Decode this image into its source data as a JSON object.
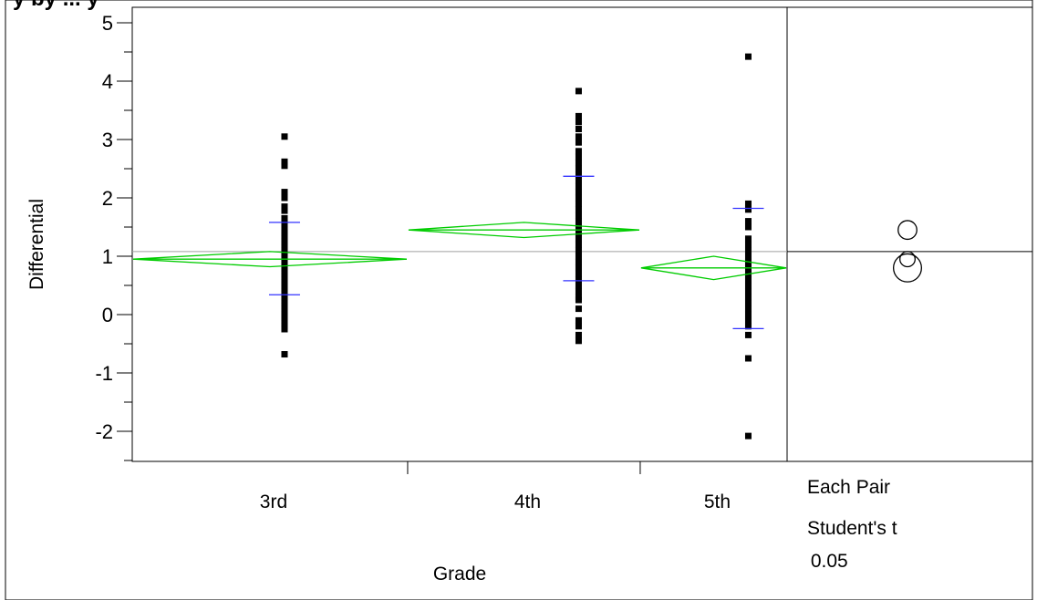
{
  "chart_data": {
    "type": "scatter",
    "title_fragment": "y by ... y",
    "ylabel": "Differential",
    "xlabel": "Grade",
    "ylim": [
      -2.5,
      5.1
    ],
    "yticks": [
      -2,
      -1,
      0,
      1,
      2,
      3,
      4,
      5
    ],
    "grand_mean": 1.08,
    "colors": {
      "points": "#000000",
      "diamond": "#00cc00",
      "quantile_bar": "#3333ff",
      "mean_line": "#a0a0a0"
    },
    "groups": [
      {
        "name": "3rd",
        "mean": 0.95,
        "ci_low": 0.82,
        "ci_high": 1.08,
        "q_high": 1.58,
        "q_low": 0.34,
        "points": [
          3.05,
          2.62,
          2.55,
          2.1,
          2.0,
          1.85,
          1.78,
          1.65,
          1.55,
          1.45,
          1.4,
          1.35,
          1.3,
          1.25,
          1.2,
          1.15,
          1.1,
          1.05,
          1.0,
          0.95,
          0.9,
          0.85,
          0.8,
          0.75,
          0.7,
          0.65,
          0.6,
          0.55,
          0.5,
          0.45,
          0.4,
          0.35,
          0.3,
          0.25,
          0.2,
          0.15,
          0.1,
          0.05,
          0.0,
          -0.05,
          -0.1,
          -0.15,
          -0.2,
          -0.25,
          -0.68
        ]
      },
      {
        "name": "4th",
        "mean": 1.45,
        "ci_low": 1.32,
        "ci_high": 1.58,
        "q_high": 2.37,
        "q_low": 0.58,
        "points": [
          3.83,
          3.4,
          3.3,
          3.18,
          3.05,
          2.95,
          2.8,
          2.7,
          2.6,
          2.5,
          2.4,
          2.3,
          2.2,
          2.1,
          2.0,
          1.9,
          1.8,
          1.7,
          1.6,
          1.5,
          1.4,
          1.3,
          1.2,
          1.1,
          1.0,
          0.9,
          0.8,
          0.7,
          0.6,
          0.5,
          0.4,
          0.3,
          0.25,
          0.1,
          -0.1,
          -0.2,
          -0.35,
          -0.45
        ]
      },
      {
        "name": "5th",
        "mean": 0.8,
        "ci_low": 0.6,
        "ci_high": 1.0,
        "q_high": 1.82,
        "q_low": -0.24,
        "points": [
          4.42,
          1.9,
          1.8,
          1.6,
          1.5,
          1.3,
          1.2,
          1.1,
          1.0,
          0.9,
          0.8,
          0.7,
          0.6,
          0.5,
          0.4,
          0.3,
          0.2,
          0.1,
          0.0,
          -0.1,
          -0.2,
          -0.35,
          -0.75,
          -2.08
        ]
      }
    ],
    "comparison": {
      "label_lines": [
        "Each Pair",
        "Student's t",
        " 0.05"
      ],
      "circles": [
        {
          "group": "4th",
          "center": 1.45,
          "radius": 0.16
        },
        {
          "group": "3rd",
          "center": 0.95,
          "radius": 0.13
        },
        {
          "group": "5th",
          "center": 0.8,
          "radius": 0.24
        }
      ]
    }
  }
}
